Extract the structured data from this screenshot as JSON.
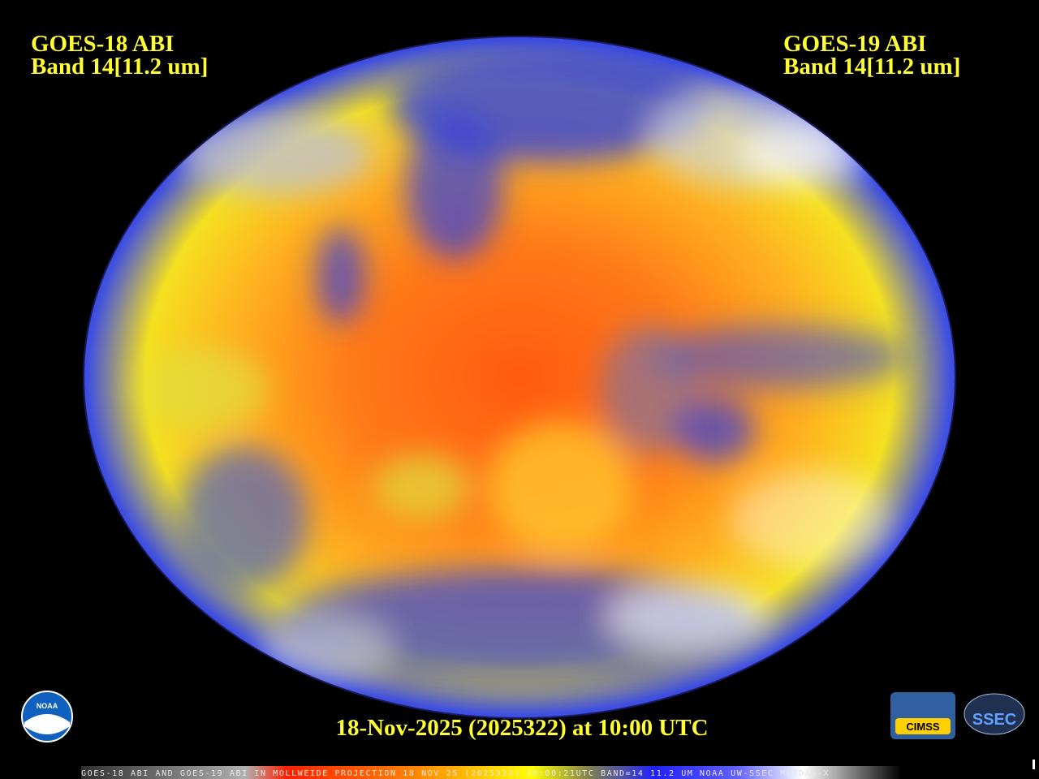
{
  "header": {
    "left": {
      "line1": "GOES-18 ABI",
      "line2": "Band 14[11.2 um]"
    },
    "right": {
      "line1": "GOES-19 ABI",
      "line2": "Band 14[11.2 um]"
    }
  },
  "timestamp": "18-Nov-2025 (2025322) at 10:00 UTC",
  "footer": "GOES-18 ABI AND GOES-19 ABI IN MOLLWEIDE PROJECTION 18 NOV 25 (2025322) 10:00:21UTC BAND=14 11.2 UM NOAA UW-SSEC MCIDAS-X",
  "logos": {
    "noaa": "NOAA",
    "cimss": "CIMSS",
    "ssec": "SSEC"
  }
}
